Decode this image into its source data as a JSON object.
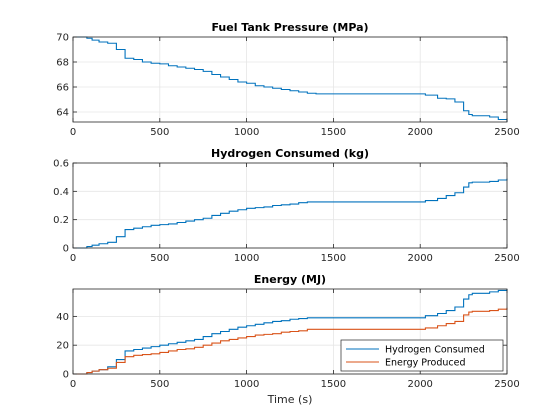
{
  "chart_data": [
    {
      "type": "line",
      "title": "Fuel Tank Pressure (MPa)",
      "xlabel": "",
      "ylabel": "",
      "xlim": [
        0,
        2500
      ],
      "ylim": [
        63.2,
        70
      ],
      "xticks": [
        0,
        500,
        1000,
        1500,
        2000,
        2500
      ],
      "yticks": [
        64,
        66,
        68,
        70
      ],
      "grid": true,
      "series": [
        {
          "color": "#0072bd",
          "x": [
            0,
            50,
            80,
            110,
            150,
            200,
            250,
            300,
            350,
            400,
            450,
            500,
            550,
            600,
            650,
            700,
            750,
            800,
            850,
            900,
            950,
            1000,
            1050,
            1100,
            1150,
            1200,
            1250,
            1300,
            1350,
            1400,
            1500,
            1600,
            1700,
            1800,
            1900,
            2000,
            2030,
            2100,
            2150,
            2200,
            2250,
            2280,
            2300,
            2400,
            2450,
            2500
          ],
          "y": [
            70,
            70,
            69.9,
            69.75,
            69.6,
            69.5,
            69.0,
            68.3,
            68.2,
            68.0,
            67.9,
            67.85,
            67.7,
            67.6,
            67.5,
            67.4,
            67.25,
            67.0,
            66.8,
            66.6,
            66.4,
            66.3,
            66.1,
            66.0,
            65.9,
            65.8,
            65.7,
            65.6,
            65.5,
            65.45,
            65.45,
            65.45,
            65.45,
            65.45,
            65.45,
            65.45,
            65.35,
            65.1,
            65.05,
            64.8,
            64.1,
            63.8,
            63.7,
            63.6,
            63.4,
            63.2
          ]
        }
      ]
    },
    {
      "type": "line",
      "title": "Hydrogen Consumed (kg)",
      "xlabel": "",
      "ylabel": "",
      "xlim": [
        0,
        2500
      ],
      "ylim": [
        0,
        0.6
      ],
      "xticks": [
        0,
        500,
        1000,
        1500,
        2000,
        2500
      ],
      "yticks": [
        0,
        0.2,
        0.4,
        0.6
      ],
      "grid": true,
      "series": [
        {
          "color": "#0072bd",
          "x": [
            0,
            50,
            80,
            110,
            150,
            200,
            250,
            300,
            350,
            400,
            450,
            500,
            550,
            600,
            650,
            700,
            750,
            800,
            850,
            900,
            950,
            1000,
            1050,
            1100,
            1150,
            1200,
            1250,
            1300,
            1350,
            1400,
            1500,
            1600,
            1700,
            1800,
            1900,
            2000,
            2030,
            2100,
            2150,
            2200,
            2250,
            2280,
            2300,
            2400,
            2450,
            2500
          ],
          "y": [
            0,
            0,
            0.01,
            0.02,
            0.03,
            0.04,
            0.08,
            0.13,
            0.14,
            0.15,
            0.16,
            0.165,
            0.17,
            0.18,
            0.19,
            0.2,
            0.21,
            0.23,
            0.245,
            0.26,
            0.27,
            0.28,
            0.285,
            0.29,
            0.3,
            0.305,
            0.31,
            0.32,
            0.325,
            0.325,
            0.325,
            0.325,
            0.325,
            0.325,
            0.325,
            0.325,
            0.335,
            0.35,
            0.37,
            0.39,
            0.43,
            0.46,
            0.465,
            0.47,
            0.48,
            0.49
          ]
        }
      ]
    },
    {
      "type": "line",
      "title": "Energy (MJ)",
      "xlabel": "Time (s)",
      "ylabel": "",
      "xlim": [
        0,
        2500
      ],
      "ylim": [
        0,
        59
      ],
      "xticks": [
        0,
        500,
        1000,
        1500,
        2000,
        2500
      ],
      "yticks": [
        0,
        20,
        40
      ],
      "grid": true,
      "legend_position": "bottom-right",
      "series": [
        {
          "name": "Hydrogen Consumed",
          "color": "#0072bd",
          "x": [
            0,
            50,
            80,
            110,
            150,
            200,
            250,
            300,
            350,
            400,
            450,
            500,
            550,
            600,
            650,
            700,
            750,
            800,
            850,
            900,
            950,
            1000,
            1050,
            1100,
            1150,
            1200,
            1250,
            1300,
            1350,
            1400,
            1500,
            1600,
            1700,
            1800,
            1900,
            2000,
            2030,
            2100,
            2150,
            2200,
            2250,
            2280,
            2300,
            2400,
            2450,
            2500
          ],
          "y": [
            0,
            0,
            1,
            2,
            3,
            5,
            10,
            16,
            17,
            18,
            19,
            20,
            21,
            22,
            23,
            24,
            26,
            28,
            29.5,
            31,
            32.5,
            33.5,
            34.5,
            35.5,
            36.5,
            37,
            38,
            38.5,
            39,
            39,
            39,
            39,
            39,
            39,
            39,
            39,
            40.5,
            42,
            44,
            46.5,
            52,
            55,
            56,
            57,
            58,
            59
          ]
        },
        {
          "name": "Energy Produced",
          "color": "#d95319",
          "x": [
            0,
            50,
            80,
            110,
            150,
            200,
            250,
            300,
            350,
            400,
            450,
            500,
            550,
            600,
            650,
            700,
            750,
            800,
            850,
            900,
            950,
            1000,
            1050,
            1100,
            1150,
            1200,
            1250,
            1300,
            1350,
            1400,
            1500,
            1600,
            1700,
            1800,
            1900,
            2000,
            2030,
            2100,
            2150,
            2200,
            2250,
            2280,
            2300,
            2400,
            2450,
            2500
          ],
          "y": [
            0,
            0,
            1,
            2,
            3,
            4,
            8,
            12,
            13,
            13.5,
            14,
            15,
            16,
            17,
            17.5,
            18.5,
            20,
            21.5,
            23,
            24,
            25,
            26,
            27,
            27.5,
            28,
            29,
            29.5,
            30,
            31,
            31,
            31,
            31,
            31,
            31,
            31,
            31,
            32,
            33.5,
            35,
            36.5,
            41,
            43,
            43.5,
            44,
            45,
            46
          ]
        }
      ]
    }
  ]
}
